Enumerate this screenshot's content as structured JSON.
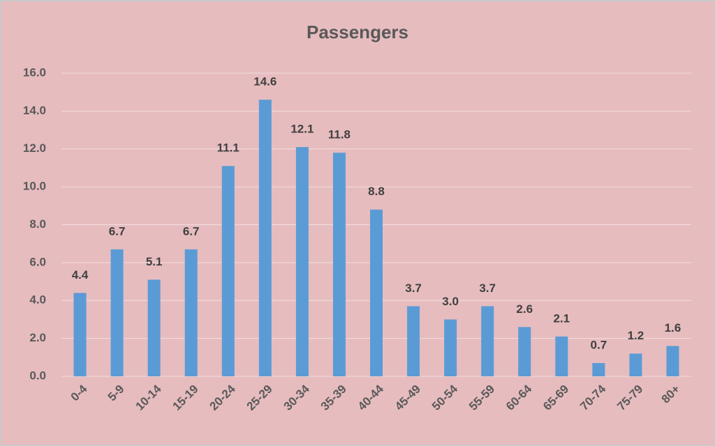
{
  "chart_data": {
    "type": "bar",
    "title": "Passengers",
    "categories": [
      "0-4",
      "5-9",
      "10-14",
      "15-19",
      "20-24",
      "25-29",
      "30-34",
      "35-39",
      "40-44",
      "45-49",
      "50-54",
      "55-59",
      "60-64",
      "65-69",
      "70-74",
      "75-79",
      "80+"
    ],
    "values": [
      4.4,
      6.7,
      5.1,
      6.7,
      11.1,
      14.6,
      12.1,
      11.8,
      8.8,
      3.7,
      3.0,
      3.7,
      2.6,
      2.1,
      0.7,
      1.2,
      1.6
    ],
    "value_labels": [
      "4.4",
      "6.7",
      "5.1",
      "6.7",
      "11.1",
      "14.6",
      "12.1",
      "11.8",
      "8.8",
      "3.7",
      "3.0",
      "3.7",
      "2.6",
      "2.1",
      "0.7",
      "1.2",
      "1.6"
    ],
    "color": "#5b9bd5",
    "ylim": [
      0,
      16
    ],
    "yticks": [
      {
        "value": 0,
        "label": "0.0"
      },
      {
        "value": 2,
        "label": "2.0"
      },
      {
        "value": 4,
        "label": "4.0"
      },
      {
        "value": 6,
        "label": "6.0"
      },
      {
        "value": 8,
        "label": "8.0"
      },
      {
        "value": 10,
        "label": "10.0"
      },
      {
        "value": 12,
        "label": "12.0"
      },
      {
        "value": 14,
        "label": "14.0"
      },
      {
        "value": 16,
        "label": "16.0"
      }
    ],
    "grid": true
  }
}
